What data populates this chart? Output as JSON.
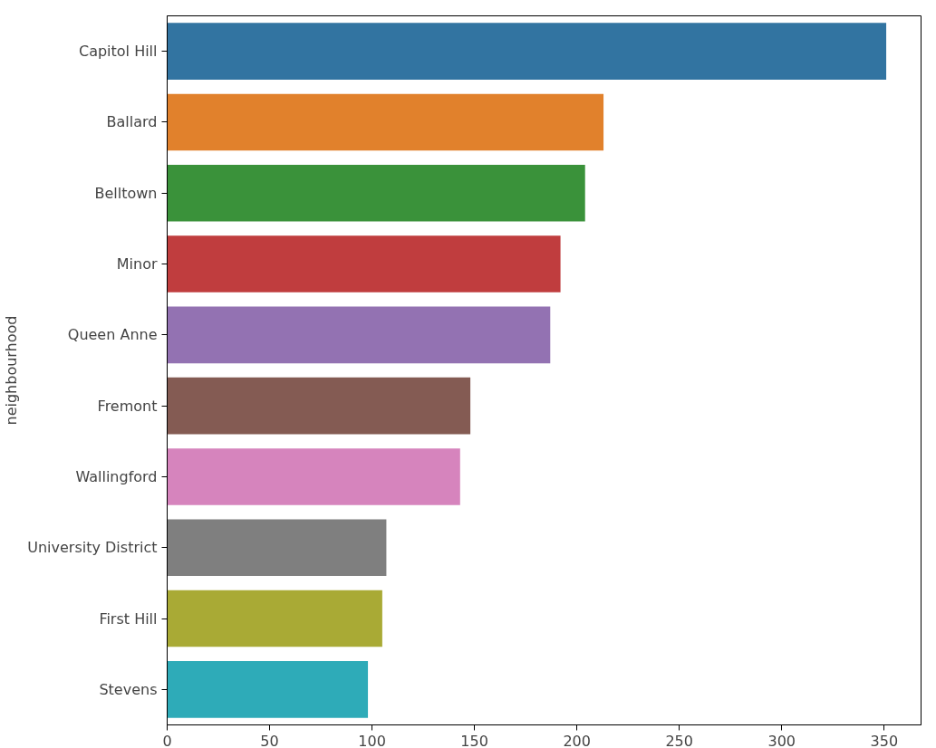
{
  "chart_data": {
    "type": "bar",
    "orientation": "horizontal",
    "ylabel": "neighbourhood",
    "categories": [
      "Capitol Hill",
      "Ballard",
      "Belltown",
      "Minor",
      "Queen Anne",
      "Fremont",
      "Wallingford",
      "University District",
      "First Hill",
      "Stevens"
    ],
    "values": [
      351,
      213,
      204,
      192,
      187,
      148,
      143,
      107,
      105,
      98
    ],
    "colors": [
      "#3274a1",
      "#e1812c",
      "#3a923a",
      "#c03d3e",
      "#9372b2",
      "#845b53",
      "#d684bd",
      "#7f7f7f",
      "#a9aa35",
      "#2eabb8"
    ],
    "xlim": [
      0,
      368
    ],
    "xticks": [
      0,
      50,
      100,
      150,
      200,
      250,
      300,
      350
    ],
    "grid": false
  }
}
